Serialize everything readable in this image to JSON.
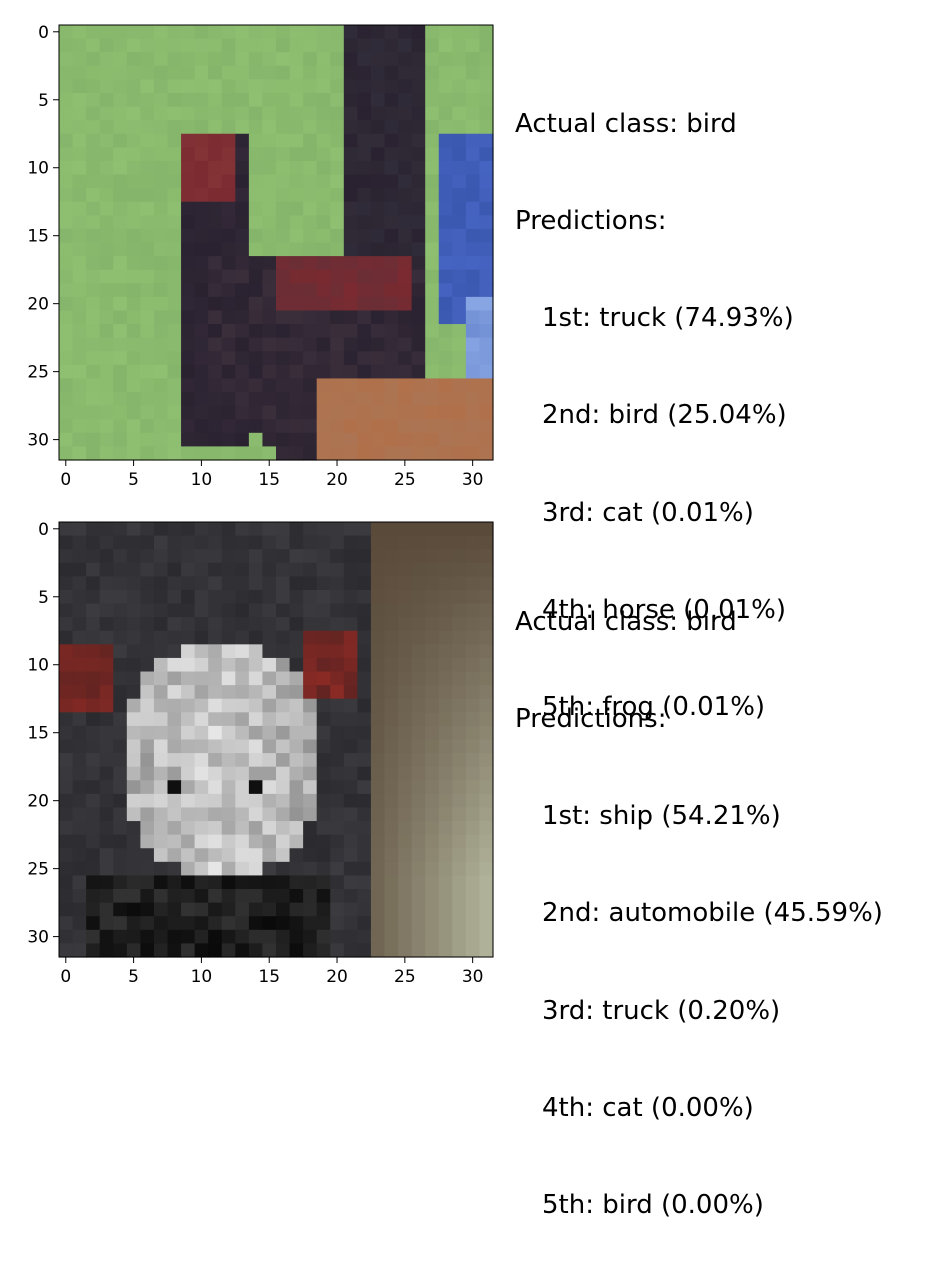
{
  "image_grid_size": 32,
  "tick_values": [
    0,
    5,
    10,
    15,
    20,
    25,
    30
  ],
  "panels": [
    {
      "actual_label": "Actual class: bird",
      "predictions_heading": "Predictions:",
      "predictions": [
        "1st: truck (74.93%)",
        "2nd: bird (25.04%)",
        "3rd: cat (0.01%)",
        "4th: horse (0.01%)",
        "5th: frog (0.01%)"
      ],
      "image_description_colors": {
        "background": "#8fbf70",
        "subject": "#2a2230",
        "accent": "#7a2a30",
        "side": "#3b58b0",
        "ground": "#b0704a"
      }
    },
    {
      "actual_label": "Actual class: bird",
      "predictions_heading": "Predictions:",
      "predictions": [
        "1st: ship (54.21%)",
        "2nd: automobile (45.59%)",
        "3rd: truck (0.20%)",
        "4th: cat (0.00%)",
        "5th: bird (0.00%)"
      ],
      "image_description_colors": {
        "background": "#a8a890",
        "subject": "#2b2b2f",
        "accent": "#e8e8e8",
        "eyes": "#8a2a25",
        "shadow": "#5a4a3a"
      }
    }
  ]
}
